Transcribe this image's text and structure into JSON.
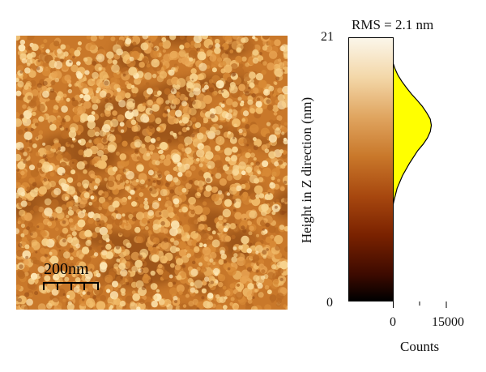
{
  "figure": {
    "scale_bar_label": "200nm",
    "rms_label": "RMS = 2.1 nm",
    "colors": {
      "afm_base": "#c9782a",
      "afm_dark": "#7a3a0c",
      "afm_light": "#fde6b3",
      "histogram_fill": "#ffff00"
    }
  },
  "chart_data": {
    "type": "area",
    "title": "RMS = 2.1 nm",
    "xlabel": "Counts",
    "ylabel": "Height in Z direction (nm)",
    "xlim": [
      0,
      15000
    ],
    "ylim": [
      0,
      21
    ],
    "x_ticks": [
      "0",
      "15000"
    ],
    "y_ticks": [
      "0",
      "21"
    ],
    "orientation": "horizontal",
    "height_nm": [
      7.6,
      8.0,
      9.0,
      10.0,
      11.0,
      12.0,
      12.5,
      13.0,
      13.5,
      14.0,
      14.5,
      15.0,
      15.5,
      16.0,
      16.5,
      17.0,
      17.5,
      18.0,
      18.5,
      19.0
    ],
    "counts": [
      0,
      300,
      1200,
      2700,
      4700,
      7000,
      8500,
      9700,
      10500,
      10800,
      10500,
      9500,
      8300,
      6800,
      5200,
      3800,
      2500,
      1400,
      600,
      0
    ]
  }
}
